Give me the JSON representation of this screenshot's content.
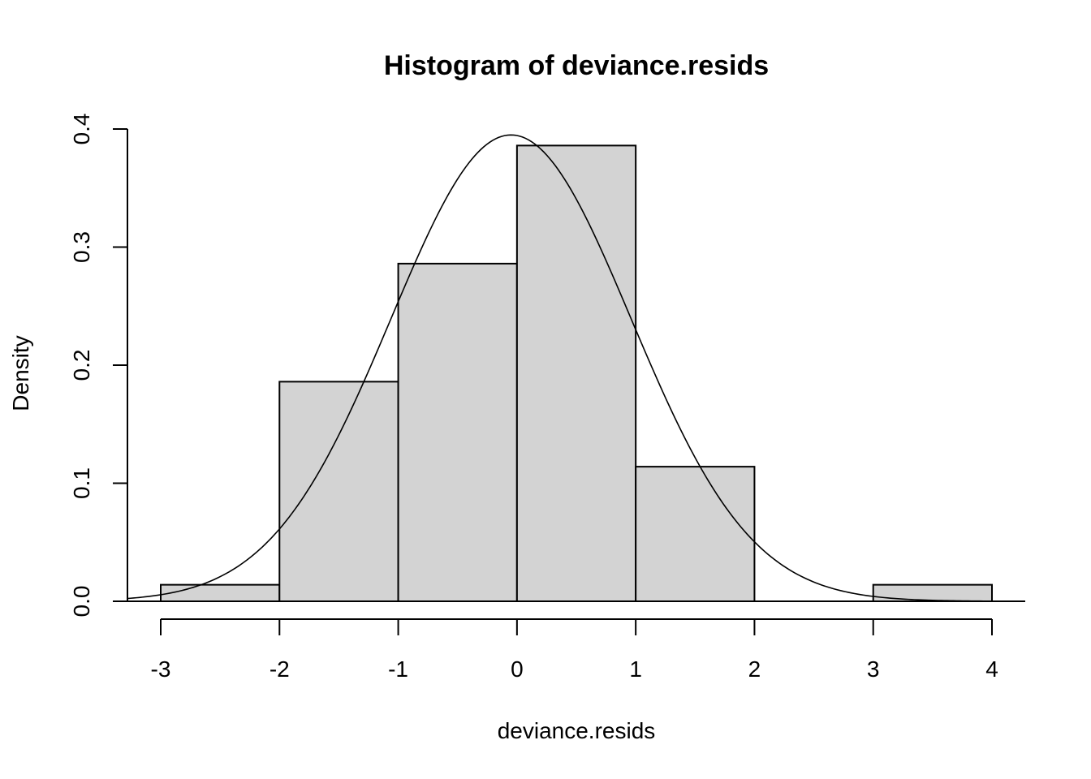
{
  "chart_data": {
    "type": "bar",
    "title": "Histogram of deviance.resids",
    "xlabel": "deviance.resids",
    "ylabel": "Density",
    "bins": [
      {
        "start": -3,
        "end": -2,
        "density": 0.014
      },
      {
        "start": -2,
        "end": -1,
        "density": 0.186
      },
      {
        "start": -1,
        "end": 0,
        "density": 0.286
      },
      {
        "start": 0,
        "end": 1,
        "density": 0.386
      },
      {
        "start": 1,
        "end": 2,
        "density": 0.114
      },
      {
        "start": 2,
        "end": 3,
        "density": 0.0
      },
      {
        "start": 3,
        "end": 4,
        "density": 0.014
      }
    ],
    "overlay_curve": {
      "type": "normal-density",
      "mean": -0.05,
      "sd": 1.01
    },
    "xlim": [
      -3.28,
      4.28
    ],
    "ylim": [
      0,
      0.4
    ],
    "x_ticks": [
      "-3",
      "-2",
      "-1",
      "0",
      "1",
      "2",
      "3",
      "4"
    ],
    "y_ticks": [
      "0.0",
      "0.1",
      "0.2",
      "0.3",
      "0.4"
    ],
    "bar_color": "#d3d3d3",
    "grid": false,
    "legend": "none"
  }
}
